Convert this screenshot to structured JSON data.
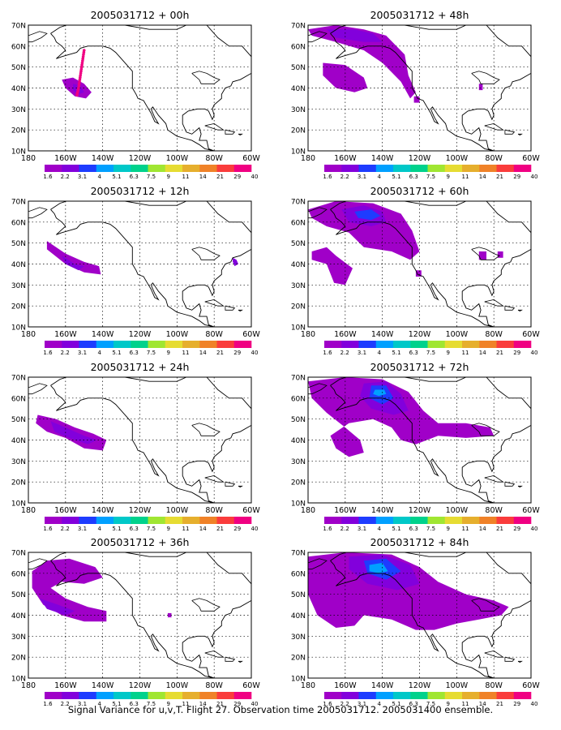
{
  "caption": "Signal Variance for u,v,T. Flight 27. Observation time 2005031712. 2005031400 ensemble.",
  "colors": {
    "scale": [
      "#a000c8",
      "#8200dc",
      "#1e3cff",
      "#00a0ff",
      "#00c8c8",
      "#00d28c",
      "#a0e632",
      "#e6dc32",
      "#e6af2d",
      "#f08228",
      "#fa3c3c",
      "#f00082"
    ],
    "track": "#f00082",
    "land": "#000000",
    "grid": "#000000"
  },
  "colorbar": {
    "labels": [
      "1.6",
      "2.2",
      "3.1",
      "4",
      "5.1",
      "6.3",
      "7.5",
      "9",
      "11",
      "14",
      "21",
      "29",
      "40"
    ]
  },
  "axes": {
    "x_ticks": [
      "180",
      "160W",
      "140W",
      "120W",
      "100W",
      "80W",
      "60W"
    ],
    "y_ticks": [
      "10N",
      "20N",
      "30N",
      "40N",
      "50N",
      "60N",
      "70N"
    ],
    "lon_range": [
      -180,
      -60
    ],
    "lat_range": [
      10,
      70
    ]
  },
  "chart_data": [
    {
      "type": "heatmap",
      "title": "2005031712 + 00h",
      "track": [
        [
          -150,
          58
        ],
        [
          -151,
          52
        ],
        [
          -152,
          46
        ],
        [
          -153,
          40
        ],
        [
          -154,
          36
        ]
      ],
      "regions": [
        {
          "level": 0,
          "points": [
            [
              -162,
              44
            ],
            [
              -156,
              45
            ],
            [
              -150,
              42
            ],
            [
              -146,
              38
            ],
            [
              -149,
              35
            ],
            [
              -155,
              36
            ],
            [
              -160,
              40
            ]
          ]
        },
        {
          "level": 1,
          "points": [
            [
              -156,
              42
            ],
            [
              -152,
              41
            ],
            [
              -150,
              38
            ],
            [
              -153,
              37
            ],
            [
              -156,
              39
            ]
          ]
        }
      ]
    },
    {
      "type": "heatmap",
      "title": "2005031712 + 12h",
      "regions": [
        {
          "level": 0,
          "points": [
            [
              -170,
              51
            ],
            [
              -160,
              45
            ],
            [
              -150,
              41
            ],
            [
              -142,
              39
            ],
            [
              -141,
              35
            ],
            [
              -150,
              36
            ],
            [
              -160,
              40
            ],
            [
              -170,
              47
            ]
          ]
        },
        {
          "level": 1,
          "points": [
            [
              -162,
              44
            ],
            [
              -155,
              40
            ],
            [
              -150,
              39
            ],
            [
              -153,
              37
            ],
            [
              -160,
              40
            ]
          ]
        },
        {
          "level": 1,
          "points": [
            [
              -70,
              43
            ],
            [
              -68,
              42
            ],
            [
              -67,
              40
            ],
            [
              -69,
              39
            ],
            [
              -70,
              41
            ]
          ]
        }
      ]
    },
    {
      "type": "heatmap",
      "title": "2005031712 + 24h",
      "regions": [
        {
          "level": 0,
          "points": [
            [
              -175,
              52
            ],
            [
              -165,
              50
            ],
            [
              -155,
              46
            ],
            [
              -145,
              43
            ],
            [
              -138,
              40
            ],
            [
              -140,
              35
            ],
            [
              -150,
              36
            ],
            [
              -160,
              41
            ],
            [
              -170,
              44
            ],
            [
              -176,
              48
            ]
          ]
        },
        {
          "level": 1,
          "points": [
            [
              -168,
              49
            ],
            [
              -160,
              46
            ],
            [
              -150,
              42
            ],
            [
              -143,
              40
            ],
            [
              -148,
              38
            ],
            [
              -158,
              41
            ],
            [
              -166,
              44
            ]
          ]
        }
      ]
    },
    {
      "type": "heatmap",
      "title": "2005031712 + 36h",
      "regions": [
        {
          "level": 0,
          "points": [
            [
              -178,
              61
            ],
            [
              -170,
              66
            ],
            [
              -158,
              67
            ],
            [
              -144,
              63
            ],
            [
              -140,
              58
            ],
            [
              -150,
              55
            ],
            [
              -162,
              56
            ],
            [
              -168,
              53
            ],
            [
              -160,
              48
            ],
            [
              -148,
              44
            ],
            [
              -138,
              42
            ],
            [
              -138,
              37
            ],
            [
              -150,
              37
            ],
            [
              -162,
              40
            ],
            [
              -172,
              45
            ],
            [
              -178,
              53
            ]
          ]
        },
        {
          "level": 1,
          "points": [
            [
              -174,
              48
            ],
            [
              -164,
              45
            ],
            [
              -155,
              42
            ],
            [
              -160,
              40
            ],
            [
              -170,
              43
            ]
          ]
        },
        {
          "level": 0,
          "points": [
            [
              -105,
              41
            ],
            [
              -103,
              41
            ],
            [
              -103,
              39
            ],
            [
              -105,
              39
            ]
          ]
        }
      ]
    },
    {
      "type": "heatmap",
      "title": "2005031712 + 48h",
      "regions": [
        {
          "level": 0,
          "points": [
            [
              -180,
              68
            ],
            [
              -165,
              70
            ],
            [
              -150,
              68
            ],
            [
              -138,
              65
            ],
            [
              -128,
              56
            ],
            [
              -126,
              46
            ],
            [
              -122,
              38
            ],
            [
              -125,
              35
            ],
            [
              -130,
              43
            ],
            [
              -140,
              52
            ],
            [
              -150,
              58
            ],
            [
              -165,
              62
            ],
            [
              -178,
              65
            ]
          ]
        },
        {
          "level": 0,
          "points": [
            [
              -172,
              52
            ],
            [
              -160,
              51
            ],
            [
              -150,
              45
            ],
            [
              -148,
              40
            ],
            [
              -155,
              38
            ],
            [
              -165,
              40
            ],
            [
              -172,
              46
            ]
          ]
        },
        {
          "level": 1,
          "points": [
            [
              -170,
              68
            ],
            [
              -155,
              68
            ],
            [
              -145,
              66
            ],
            [
              -140,
              62
            ],
            [
              -150,
              62
            ],
            [
              -165,
              64
            ]
          ]
        },
        {
          "level": 0,
          "points": [
            [
              -123,
              36
            ],
            [
              -120,
              36
            ],
            [
              -120,
              33
            ],
            [
              -123,
              33
            ]
          ]
        },
        {
          "level": 0,
          "points": [
            [
              -88,
              42
            ],
            [
              -86,
              42
            ],
            [
              -86,
              39
            ],
            [
              -88,
              39
            ]
          ]
        }
      ]
    },
    {
      "type": "heatmap",
      "title": "2005031712 + 60h",
      "regions": [
        {
          "level": 0,
          "points": [
            [
              -180,
              66
            ],
            [
              -165,
              70
            ],
            [
              -145,
              69
            ],
            [
              -130,
              64
            ],
            [
              -124,
              56
            ],
            [
              -120,
              46
            ],
            [
              -125,
              42
            ],
            [
              -135,
              46
            ],
            [
              -150,
              48
            ],
            [
              -158,
              55
            ],
            [
              -170,
              58
            ],
            [
              -178,
              62
            ]
          ]
        },
        {
          "level": 1,
          "points": [
            [
              -162,
              66
            ],
            [
              -150,
              68
            ],
            [
              -140,
              65
            ],
            [
              -138,
              60
            ],
            [
              -146,
              58
            ],
            [
              -158,
              60
            ]
          ]
        },
        {
          "level": 2,
          "points": [
            [
              -155,
              65
            ],
            [
              -146,
              66
            ],
            [
              -141,
              63
            ],
            [
              -146,
              61
            ],
            [
              -153,
              62
            ]
          ]
        },
        {
          "level": 0,
          "points": [
            [
              -178,
              46
            ],
            [
              -170,
              48
            ],
            [
              -165,
              44
            ],
            [
              -156,
              38
            ],
            [
              -160,
              30
            ],
            [
              -166,
              31
            ],
            [
              -170,
              40
            ],
            [
              -178,
              42
            ]
          ]
        },
        {
          "level": 0,
          "points": [
            [
              -122,
              37
            ],
            [
              -119,
              37
            ],
            [
              -119,
              34
            ],
            [
              -122,
              34
            ]
          ]
        },
        {
          "level": 0,
          "points": [
            [
              -88,
              46
            ],
            [
              -84,
              46
            ],
            [
              -84,
              42
            ],
            [
              -88,
              42
            ]
          ]
        },
        {
          "level": 0,
          "points": [
            [
              -78,
              46
            ],
            [
              -75,
              46
            ],
            [
              -75,
              43
            ],
            [
              -78,
              43
            ]
          ]
        }
      ]
    },
    {
      "type": "heatmap",
      "title": "2005031712 + 72h",
      "regions": [
        {
          "level": 0,
          "points": [
            [
              -180,
              68
            ],
            [
              -160,
              70
            ],
            [
              -140,
              69
            ],
            [
              -126,
              63
            ],
            [
              -118,
              54
            ],
            [
              -110,
              48
            ],
            [
              -95,
              48
            ],
            [
              -82,
              46
            ],
            [
              -80,
              42
            ],
            [
              -95,
              41
            ],
            [
              -110,
              42
            ],
            [
              -122,
              38
            ],
            [
              -130,
              40
            ],
            [
              -135,
              46
            ],
            [
              -145,
              50
            ],
            [
              -158,
              48
            ],
            [
              -168,
              42
            ],
            [
              -165,
              36
            ],
            [
              -158,
              32
            ],
            [
              -150,
              34
            ],
            [
              -152,
              40
            ],
            [
              -160,
              46
            ],
            [
              -170,
              53
            ],
            [
              -178,
              60
            ]
          ]
        },
        {
          "level": 1,
          "points": [
            [
              -150,
              67
            ],
            [
              -138,
              68
            ],
            [
              -130,
              62
            ],
            [
              -126,
              54
            ],
            [
              -134,
              52
            ],
            [
              -146,
              55
            ],
            [
              -152,
              61
            ]
          ]
        },
        {
          "level": 2,
          "points": [
            [
              -146,
              66
            ],
            [
              -138,
              66
            ],
            [
              -134,
              60
            ],
            [
              -140,
              57
            ],
            [
              -147,
              60
            ]
          ]
        },
        {
          "level": 3,
          "points": [
            [
              -144,
              64
            ],
            [
              -139,
              64
            ],
            [
              -138,
              62
            ],
            [
              -142,
              61
            ],
            [
              -145,
              62
            ]
          ]
        },
        {
          "level": 0,
          "points": [
            [
              -91,
              46
            ],
            [
              -85,
              46
            ],
            [
              -84,
              42
            ],
            [
              -90,
              42
            ]
          ]
        }
      ]
    },
    {
      "type": "heatmap",
      "title": "2005031712 + 84h",
      "regions": [
        {
          "level": 0,
          "points": [
            [
              -180,
              68
            ],
            [
              -160,
              70
            ],
            [
              -135,
              69
            ],
            [
              -120,
              63
            ],
            [
              -110,
              56
            ],
            [
              -95,
              50
            ],
            [
              -80,
              47
            ],
            [
              -72,
              44
            ],
            [
              -76,
              40
            ],
            [
              -88,
              38
            ],
            [
              -100,
              36
            ],
            [
              -112,
              33
            ],
            [
              -122,
              33
            ],
            [
              -135,
              38
            ],
            [
              -150,
              40
            ],
            [
              -155,
              35
            ],
            [
              -165,
              34
            ],
            [
              -175,
              40
            ],
            [
              -180,
              50
            ]
          ]
        },
        {
          "level": 1,
          "points": [
            [
              -158,
              68
            ],
            [
              -140,
              69
            ],
            [
              -125,
              64
            ],
            [
              -120,
              55
            ],
            [
              -132,
              52
            ],
            [
              -148,
              55
            ],
            [
              -158,
              62
            ]
          ]
        },
        {
          "level": 2,
          "points": [
            [
              -150,
              66
            ],
            [
              -138,
              67
            ],
            [
              -130,
              61
            ],
            [
              -138,
              57
            ],
            [
              -148,
              60
            ]
          ]
        },
        {
          "level": 3,
          "points": [
            [
              -147,
              64
            ],
            [
              -140,
              65
            ],
            [
              -137,
              61
            ],
            [
              -142,
              60
            ],
            [
              -147,
              61
            ]
          ]
        }
      ]
    }
  ]
}
